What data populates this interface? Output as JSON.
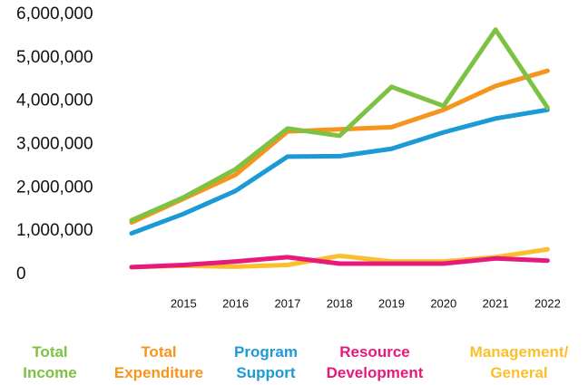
{
  "chart_data": {
    "type": "line",
    "categories": [
      null,
      "2015",
      "2016",
      "2017",
      "2018",
      "2019",
      "2020",
      "2021",
      "2022"
    ],
    "series": [
      {
        "name": "Total Income",
        "color": "#7dc242",
        "values": [
          1250000,
          1780000,
          2430000,
          3370000,
          3200000,
          4330000,
          3890000,
          5650000,
          3850000
        ]
      },
      {
        "name": "Total Expenditure",
        "color": "#f7941d",
        "values": [
          1200000,
          1750000,
          2300000,
          3300000,
          3350000,
          3400000,
          3800000,
          4350000,
          4700000
        ]
      },
      {
        "name": "Program Support",
        "color": "#1b9ad6",
        "values": [
          950000,
          1400000,
          1930000,
          2720000,
          2730000,
          2900000,
          3280000,
          3600000,
          3800000
        ]
      },
      {
        "name": "Resource Development",
        "color": "#e6197c",
        "values": [
          170000,
          220000,
          300000,
          400000,
          250000,
          250000,
          250000,
          370000,
          320000
        ]
      },
      {
        "name": "Management/ General",
        "color": "#fbbf2e",
        "values": [
          170000,
          200000,
          180000,
          220000,
          430000,
          300000,
          300000,
          400000,
          580000
        ]
      }
    ],
    "ylim": [
      0,
      6000000
    ],
    "yticks": [
      0,
      {
        "value": 1000000,
        "label": "1,000,000"
      },
      {
        "value": 2000000,
        "label": "2,000,000"
      },
      {
        "value": 3000000,
        "label": "3,000,000"
      },
      {
        "value": 4000000,
        "label": "4,000,000"
      },
      {
        "value": 5000000,
        "label": "5,000,000"
      },
      {
        "value": 6000000,
        "label": "6,000,000"
      }
    ],
    "grid": false
  }
}
